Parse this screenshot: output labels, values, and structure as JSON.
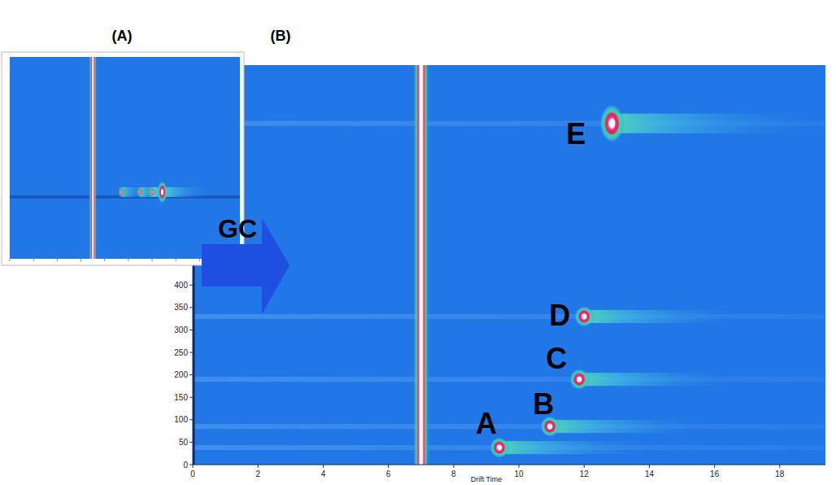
{
  "chart_data": {
    "type": "heatmap",
    "panel_labels": [
      "(A)",
      "(B)"
    ],
    "annotation": "GC",
    "x_label": "Drift Time",
    "xlim": [
      0,
      19.4
    ],
    "xticks": [
      0,
      2,
      4,
      6,
      8,
      10,
      12,
      14,
      16,
      18
    ],
    "ylim": [
      0,
      890
    ],
    "yticks": [
      0,
      50,
      100,
      150,
      200,
      250,
      300,
      350,
      400
    ],
    "rip_x": 7.0,
    "x": [
      9.4,
      10.95,
      11.85,
      12.0,
      12.85
    ],
    "values": [
      38,
      85,
      190,
      330,
      760
    ],
    "point_labels": [
      "A",
      "B",
      "C",
      "D",
      "E"
    ]
  }
}
